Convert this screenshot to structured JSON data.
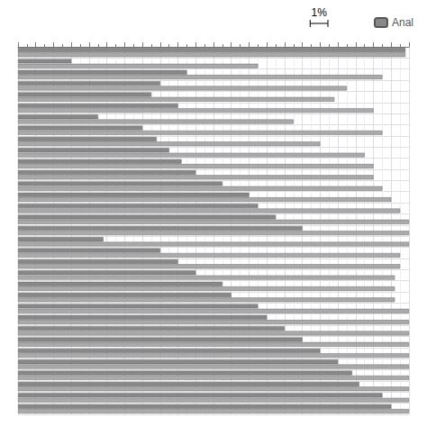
{
  "chart_data": {
    "type": "bar",
    "orientation": "horizontal",
    "categories": [
      null,
      null,
      null,
      null,
      null,
      null,
      null,
      null,
      null,
      null,
      null,
      null,
      null,
      null,
      null,
      null,
      null,
      null,
      null,
      null,
      null,
      null,
      null,
      null,
      null,
      null,
      null,
      null,
      null,
      null,
      null,
      null,
      null
    ],
    "series": [
      {
        "name": "Anal",
        "color": "#888888",
        "values": [
          21.8,
          3.0,
          9.5,
          8.0,
          7.5,
          9.0,
          4.5,
          7.0,
          7.8,
          8.5,
          9.2,
          10.0,
          11.5,
          13.0,
          13.5,
          14.5,
          16.0,
          4.8,
          8.0,
          9.0,
          10.0,
          11.5,
          12.0,
          13.5,
          14.0,
          15.0,
          16.0,
          17.0,
          18.0,
          18.8,
          19.2,
          20.5,
          21.0
        ]
      },
      {
        "color": "#aaaaaa",
        "values": [
          21.8,
          13.5,
          20.5,
          18.5,
          17.8,
          20.0,
          15.5,
          20.5,
          17.0,
          19.5,
          20.0,
          20.0,
          20.5,
          21.0,
          21.5,
          22.0,
          22.0,
          22.0,
          21.5,
          21.5,
          21.2,
          21.2,
          21.2,
          22.0,
          22.0,
          22.0,
          22.0,
          22.0,
          22.0,
          22.0,
          22.0,
          22.0,
          22.0
        ]
      }
    ],
    "xlim": [
      0,
      22
    ],
    "xticks": [
      0,
      1,
      2,
      3,
      4,
      5,
      6,
      7,
      8,
      9,
      10,
      11,
      12,
      13,
      14,
      15,
      16,
      17,
      18,
      19,
      20,
      21,
      22
    ],
    "annotations": [
      {
        "text": "1%",
        "span": 1
      }
    ],
    "legend": "upper right",
    "grid": true,
    "tick_labels": false
  }
}
